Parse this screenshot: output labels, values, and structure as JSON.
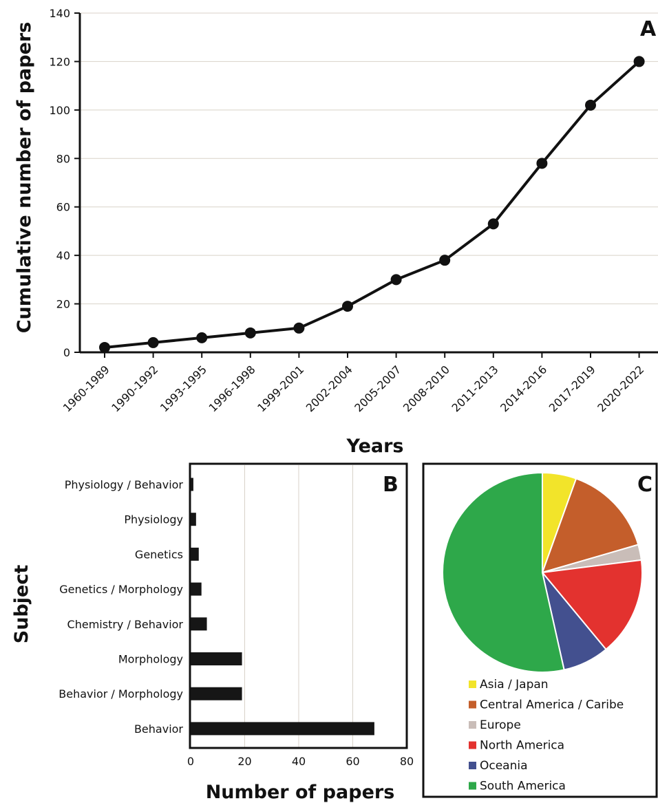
{
  "chart_data": [
    {
      "type": "line",
      "panel_label": "A",
      "title": "",
      "xlabel": "Years",
      "ylabel": "Cumulative number of papers",
      "ylim": [
        0,
        140
      ],
      "yticks": [
        0,
        20,
        40,
        60,
        80,
        100,
        120,
        140
      ],
      "grid": true,
      "categories": [
        "1960-1989",
        "1990-1992",
        "1993-1995",
        "1996-1998",
        "1999-2001",
        "2002-2004",
        "2005-2007",
        "2008-2010",
        "2011-2013",
        "2014-2016",
        "2017-2019",
        "2020-2022"
      ],
      "values": [
        2,
        4,
        6,
        8,
        10,
        19,
        30,
        38,
        53,
        78,
        102,
        120
      ]
    },
    {
      "type": "bar",
      "orientation": "horizontal",
      "panel_label": "B",
      "title": "",
      "xlabel": "Number of papers",
      "ylabel": "Subject",
      "xlim": [
        0,
        80
      ],
      "xticks": [
        0,
        20,
        40,
        60,
        80
      ],
      "grid": true,
      "categories": [
        "Physiology / Behavior",
        "Physiology",
        "Genetics",
        "Genetics / Morphology",
        "Chemistry / Behavior",
        "Morphology",
        "Behavior / Morphology",
        "Behavior"
      ],
      "values": [
        1,
        2,
        3,
        4,
        6,
        19,
        19,
        68
      ]
    },
    {
      "type": "pie",
      "panel_label": "C",
      "title": "",
      "legend_position": "bottom",
      "labels": [
        "Asia / Japan",
        "Central America / Caribe",
        "Europe",
        "North America",
        "Oceania",
        "South America"
      ],
      "values": [
        5.5,
        15,
        2.5,
        16,
        7.5,
        53.5
      ],
      "colors": [
        "#f2e42a",
        "#c45e2b",
        "#c9bdb8",
        "#e3322f",
        "#43508f",
        "#2ea84a"
      ]
    }
  ]
}
